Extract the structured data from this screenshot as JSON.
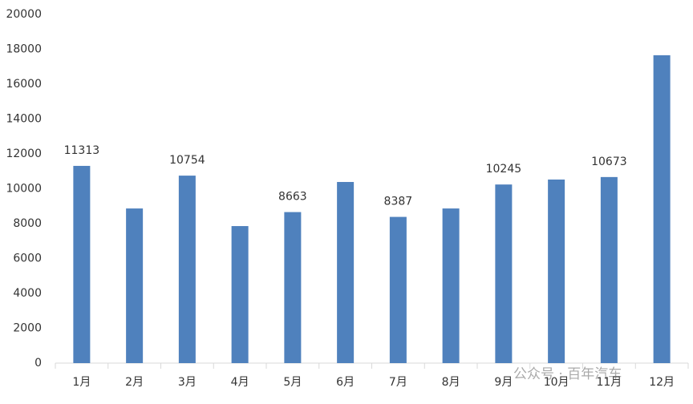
{
  "chart_data": {
    "type": "bar",
    "categories": [
      "1月",
      "2月",
      "3月",
      "4月",
      "5月",
      "6月",
      "7月",
      "8月",
      "9月",
      "10月",
      "11月",
      "12月"
    ],
    "values": [
      11313,
      8870,
      10754,
      7860,
      8663,
      10390,
      8387,
      8870,
      10245,
      10530,
      10673,
      17660
    ],
    "value_labels": [
      "11313",
      null,
      "10754",
      null,
      "8663",
      null,
      "8387",
      null,
      "10245",
      null,
      "10673",
      null
    ],
    "color": "#4f81bd",
    "ylim": [
      0,
      20000
    ],
    "yticks": [
      0,
      2000,
      4000,
      6000,
      8000,
      10000,
      12000,
      14000,
      16000,
      18000,
      20000
    ],
    "grid": false,
    "watermark": "公众号 · 百年汽车"
  }
}
